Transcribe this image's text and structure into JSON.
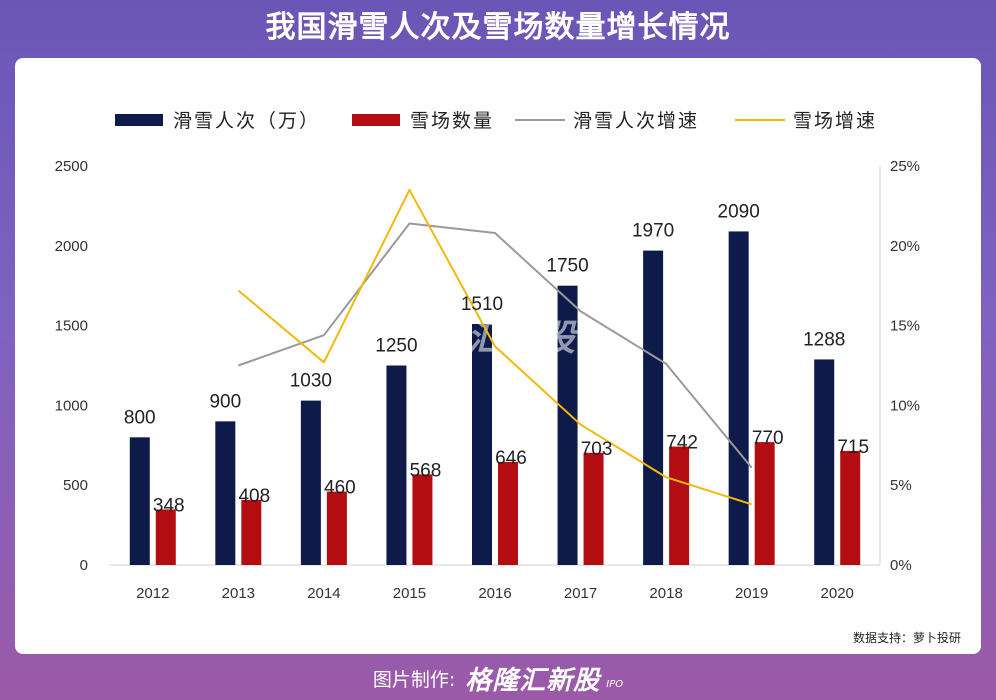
{
  "page": {
    "title": "我国滑雪人次及雪场数量增长情况",
    "footer_label": "图片制作:",
    "brand": "格隆汇新股",
    "brand_sub": "IPO",
    "watermark": "格隆汇新股",
    "watermark_sub": "IPO"
  },
  "chart_data": {
    "type": "bar",
    "categories": [
      "2012",
      "2013",
      "2014",
      "2015",
      "2016",
      "2017",
      "2018",
      "2019",
      "2020"
    ],
    "series": [
      {
        "name": "滑雪人次（万）",
        "kind": "bar",
        "axis": "left",
        "color": "#0d1a4a",
        "values": [
          800,
          900,
          1030,
          1250,
          1510,
          1750,
          1970,
          2090,
          1288
        ]
      },
      {
        "name": "雪场数量",
        "kind": "bar",
        "axis": "left",
        "color": "#b30d12",
        "values": [
          348,
          408,
          460,
          568,
          646,
          703,
          742,
          770,
          715
        ]
      },
      {
        "name": "滑雪人次增速",
        "kind": "line",
        "axis": "right",
        "color": "#9a9a9a",
        "values": [
          null,
          12.5,
          14.4,
          21.4,
          20.8,
          15.9,
          12.6,
          6.1,
          null
        ]
      },
      {
        "name": "雪场增速",
        "kind": "line",
        "axis": "right",
        "color": "#f2b90c",
        "values": [
          null,
          17.2,
          12.7,
          23.5,
          13.7,
          8.8,
          5.5,
          3.8,
          null
        ]
      }
    ],
    "y_left": {
      "min": 0,
      "max": 2500,
      "ticks": [
        "0",
        "500",
        "1000",
        "1500",
        "2000",
        "2500"
      ]
    },
    "y_right": {
      "min": 0,
      "max": 25,
      "ticks": [
        "0%",
        "5%",
        "10%",
        "15%",
        "20%",
        "25%"
      ]
    },
    "legend_position": "top",
    "grid": false,
    "source": "数据支持：萝卜投研"
  }
}
